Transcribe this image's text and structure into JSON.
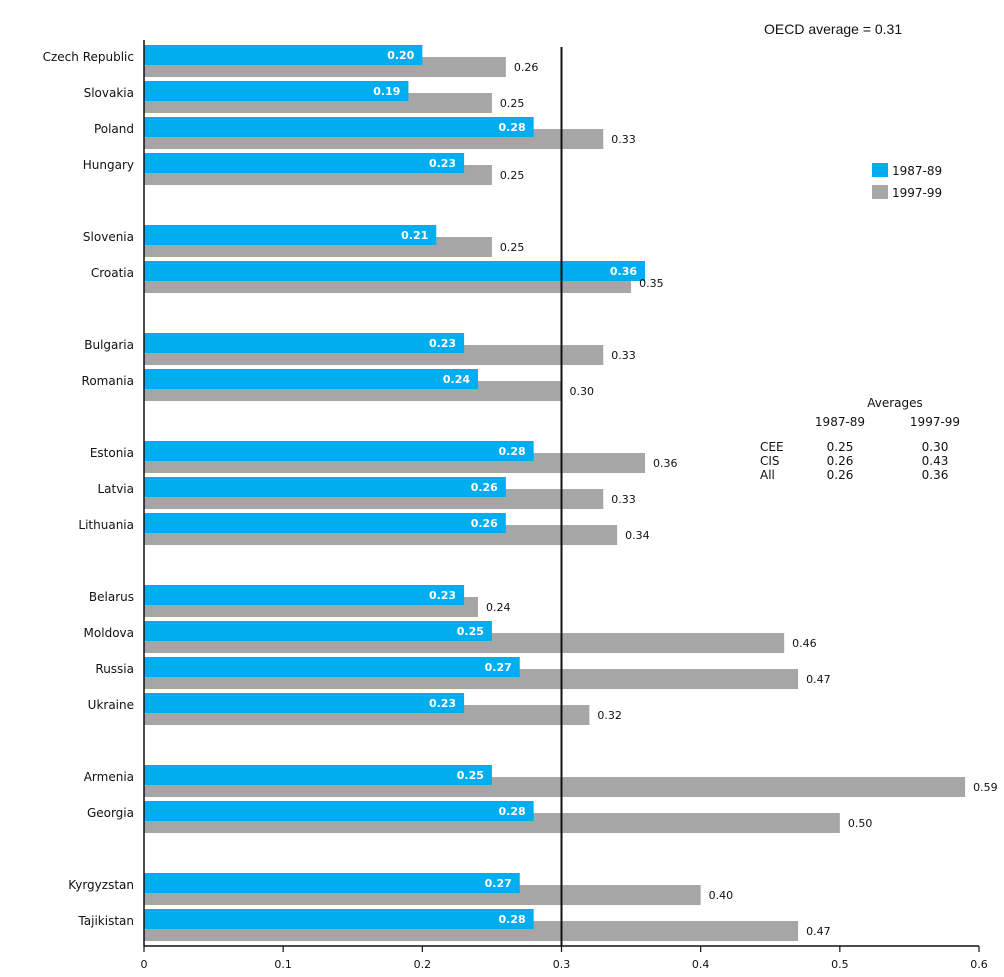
{
  "colors": {
    "series_1987": "#00aeef",
    "series_1997": "#a6a6a6",
    "axis": "#111111"
  },
  "oecd_note": "OECD average = 0.31",
  "chart_data": {
    "type": "bar",
    "orientation": "horizontal",
    "xlim": [
      0,
      0.6
    ],
    "x_ticks": [
      "0",
      "0.1",
      "0.2",
      "0.3",
      "0.4",
      "0.5",
      "0.6"
    ],
    "reference_line": {
      "value": 0.3
    },
    "grouping": [
      [
        "Czech Republic",
        "Slovakia",
        "Poland",
        "Hungary"
      ],
      [
        "Slovenia",
        "Croatia"
      ],
      [
        "Bulgaria",
        "Romania"
      ],
      [
        "Estonia",
        "Latvia",
        "Lithuania"
      ],
      [
        "Belarus",
        "Moldova",
        "Russia",
        "Ukraine"
      ],
      [
        "Armenia",
        "Georgia"
      ],
      [
        "Kyrgyzstan",
        "Tajikistan"
      ]
    ],
    "categories": [
      "Czech Republic",
      "Slovakia",
      "Poland",
      "Hungary",
      "Slovenia",
      "Croatia",
      "Bulgaria",
      "Romania",
      "Estonia",
      "Latvia",
      "Lithuania",
      "Belarus",
      "Moldova",
      "Russia",
      "Ukraine",
      "Armenia",
      "Georgia",
      "Kyrgyzstan",
      "Tajikistan"
    ],
    "series": [
      {
        "name": "1987-89",
        "values": [
          0.2,
          0.19,
          0.28,
          0.23,
          0.21,
          0.36,
          0.23,
          0.24,
          0.28,
          0.26,
          0.26,
          0.23,
          0.25,
          0.27,
          0.23,
          0.25,
          0.28,
          0.27,
          0.28
        ],
        "labels": [
          "0.20",
          "0.19",
          "0.28",
          "0.23",
          "0.21",
          "0.36",
          "0.23",
          "0.24",
          "0.28",
          "0.26",
          "0.26",
          "0.23",
          "0.25",
          "0.27",
          "0.23",
          "0.25",
          "0.28",
          "0.27",
          "0.28"
        ]
      },
      {
        "name": "1997-99",
        "values": [
          0.26,
          0.25,
          0.33,
          0.25,
          0.25,
          0.35,
          0.33,
          0.3,
          0.36,
          0.33,
          0.34,
          0.24,
          0.46,
          0.47,
          0.32,
          0.59,
          0.5,
          0.4,
          0.47
        ],
        "labels": [
          "0.26",
          "0.25",
          "0.33",
          "0.25",
          "0.25",
          "0.35",
          "0.33",
          "0.30",
          "0.36",
          "0.33",
          "0.34",
          "0.24",
          "0.46",
          "0.47",
          "0.32",
          "0.59",
          "0.50",
          "0.40",
          "0.47"
        ]
      }
    ],
    "legend": {
      "position": "top-right",
      "items": [
        "1987-89",
        "1997-99"
      ]
    },
    "averages_table": {
      "title": "Averages",
      "columns": [
        "1987-89",
        "1997-99"
      ],
      "rows": [
        {
          "label": "CEE",
          "values": [
            "0.25",
            "0.30"
          ]
        },
        {
          "label": "CIS",
          "values": [
            "0.26",
            "0.43"
          ]
        },
        {
          "label": "All",
          "values": [
            "0.26",
            "0.36"
          ]
        }
      ]
    }
  }
}
